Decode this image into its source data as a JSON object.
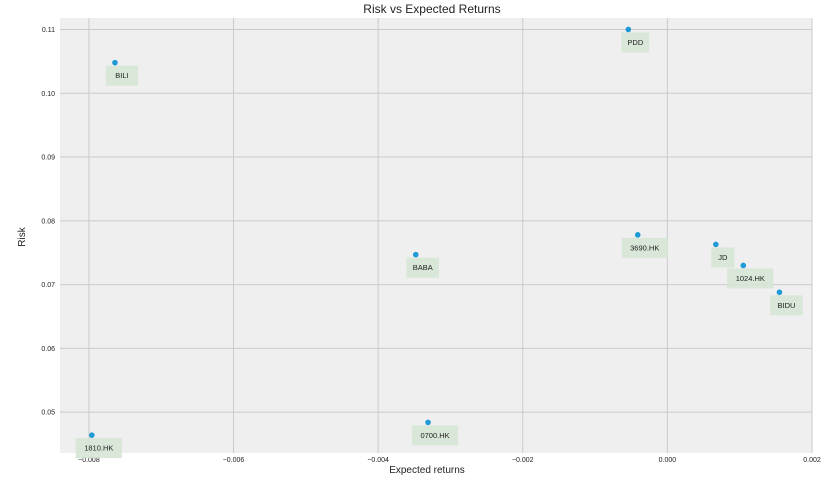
{
  "chart_data": {
    "type": "scatter",
    "title": "Risk vs Expected Returns",
    "xlabel": "Expected returns",
    "ylabel": "Risk",
    "xlim": [
      -0.0084,
      0.002
    ],
    "ylim": [
      0.0436,
      0.1118
    ],
    "xticks": [
      -0.008,
      -0.006,
      -0.004,
      -0.002,
      0.0,
      0.002
    ],
    "xtick_labels": [
      "−0.008",
      "−0.006",
      "−0.004",
      "−0.002",
      "0.000",
      "0.002"
    ],
    "yticks": [
      0.05,
      0.06,
      0.07,
      0.08,
      0.09,
      0.1,
      0.11
    ],
    "ytick_labels": [
      "0.05",
      "0.06",
      "0.07",
      "0.08",
      "0.09",
      "0.10",
      "0.11"
    ],
    "grid": true,
    "legend": "none",
    "colors": {
      "background": "#efefef",
      "grid": "#cbcbcb",
      "point": "#1f9ad6",
      "label_box": "#d5e5d5"
    },
    "points": [
      {
        "label": "BILI",
        "x": -0.00764,
        "y": 0.1048
      },
      {
        "label": "PDD",
        "x": -0.00054,
        "y": 0.11
      },
      {
        "label": "BABA",
        "x": -0.00348,
        "y": 0.0747
      },
      {
        "label": "3690.HK",
        "x": -0.00041,
        "y": 0.0778
      },
      {
        "label": "JD",
        "x": 0.00067,
        "y": 0.0763
      },
      {
        "label": "1024.HK",
        "x": 0.00105,
        "y": 0.073
      },
      {
        "label": "BIDU",
        "x": 0.00155,
        "y": 0.0688
      },
      {
        "label": "1810.HK",
        "x": -0.00796,
        "y": 0.0464
      },
      {
        "label": "0700.HK",
        "x": -0.00331,
        "y": 0.0484
      }
    ]
  }
}
